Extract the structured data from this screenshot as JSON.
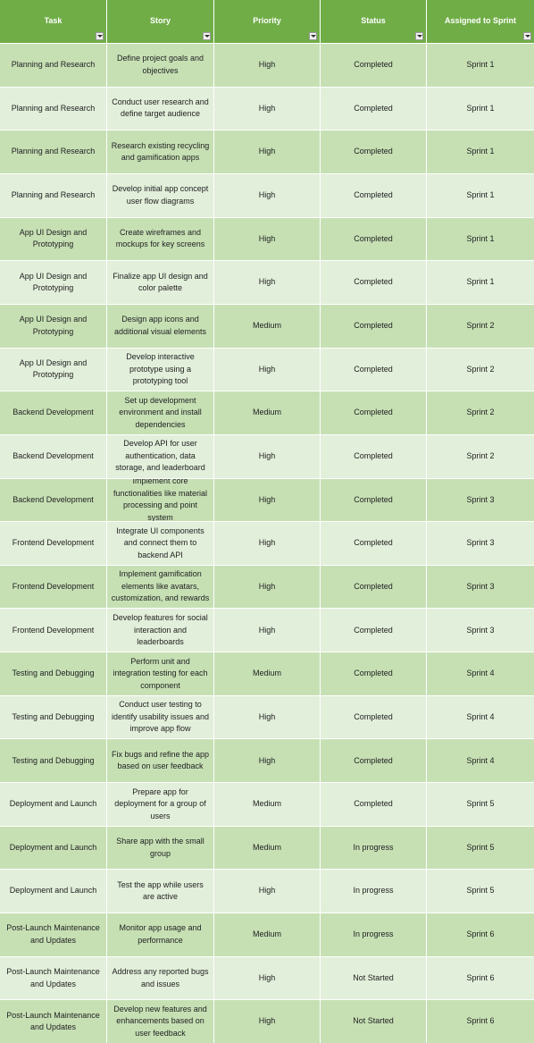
{
  "table": {
    "header": [
      "Task",
      "Story",
      "Priority",
      "Status",
      "Assigned to Sprint"
    ],
    "rows": [
      [
        "Planning and Research",
        "Define project goals and objectives",
        "High",
        "Completed",
        "Sprint 1"
      ],
      [
        "Planning and Research",
        "Conduct user research and define target audience",
        "High",
        "Completed",
        "Sprint 1"
      ],
      [
        "Planning and Research",
        "Research existing recycling and gamification apps",
        "High",
        "Completed",
        "Sprint 1"
      ],
      [
        "Planning and Research",
        "Develop initial app concept user flow diagrams",
        "High",
        "Completed",
        "Sprint 1"
      ],
      [
        "App UI Design and Prototyping",
        "Create wireframes and mockups for key screens",
        "High",
        "Completed",
        "Sprint 1"
      ],
      [
        "App UI Design and Prototyping",
        "Finalize app UI design and color palette",
        "High",
        "Completed",
        "Sprint 1"
      ],
      [
        "App UI Design and Prototyping",
        "Design app icons and additional visual elements",
        "Medium",
        "Completed",
        "Sprint 2"
      ],
      [
        "App UI Design and Prototyping",
        "Develop interactive prototype using a prototyping tool",
        "High",
        "Completed",
        "Sprint 2"
      ],
      [
        "Backend Development",
        "Set up development environment and install dependencies",
        "Medium",
        "Completed",
        "Sprint 2"
      ],
      [
        "Backend Development",
        "Develop API for user authentication, data storage, and leaderboard",
        "High",
        "Completed",
        "Sprint 2"
      ],
      [
        "Backend Development",
        "Implement core functionalities like material processing and point system",
        "High",
        "Completed",
        "Sprint 3"
      ],
      [
        "Frontend Development",
        "Integrate UI components and connect them to backend API",
        "High",
        "Completed",
        "Sprint 3"
      ],
      [
        "Frontend Development",
        "Implement gamification elements like avatars, customization, and rewards",
        "High",
        "Completed",
        "Sprint 3"
      ],
      [
        "Frontend Development",
        "Develop features for social interaction and leaderboards",
        "High",
        "Completed",
        "Sprint 3"
      ],
      [
        "Testing and Debugging",
        "Perform unit and integration testing for each component",
        "Medium",
        "Completed",
        "Sprint 4"
      ],
      [
        "Testing and Debugging",
        "Conduct user testing to identify usability issues and improve app flow",
        "High",
        "Completed",
        "Sprint 4"
      ],
      [
        "Testing and Debugging",
        "Fix bugs and refine the app based on user feedback",
        "High",
        "Completed",
        "Sprint 4"
      ],
      [
        "Deployment and Launch",
        "Prepare app for deployment for a group of users",
        "Medium",
        "Completed",
        "Sprint 5"
      ],
      [
        "Deployment and Launch",
        "Share app with the small group",
        "Medium",
        "In progress",
        "Sprint 5"
      ],
      [
        "Deployment and Launch",
        "Test the app while users are active",
        "High",
        "In progress",
        "Sprint 5"
      ],
      [
        "Post-Launch Maintenance and Updates",
        "Monitor app usage and performance",
        "Medium",
        "In progress",
        "Sprint 6"
      ],
      [
        "Post-Launch Maintenance and Updates",
        "Address any reported bugs and issues",
        "High",
        "Not Started",
        "Sprint 6"
      ],
      [
        "Post-Launch Maintenance and Updates",
        "Develop new features and enhancements based on user feedback",
        "High",
        "Not Started",
        "Sprint 6"
      ]
    ]
  }
}
